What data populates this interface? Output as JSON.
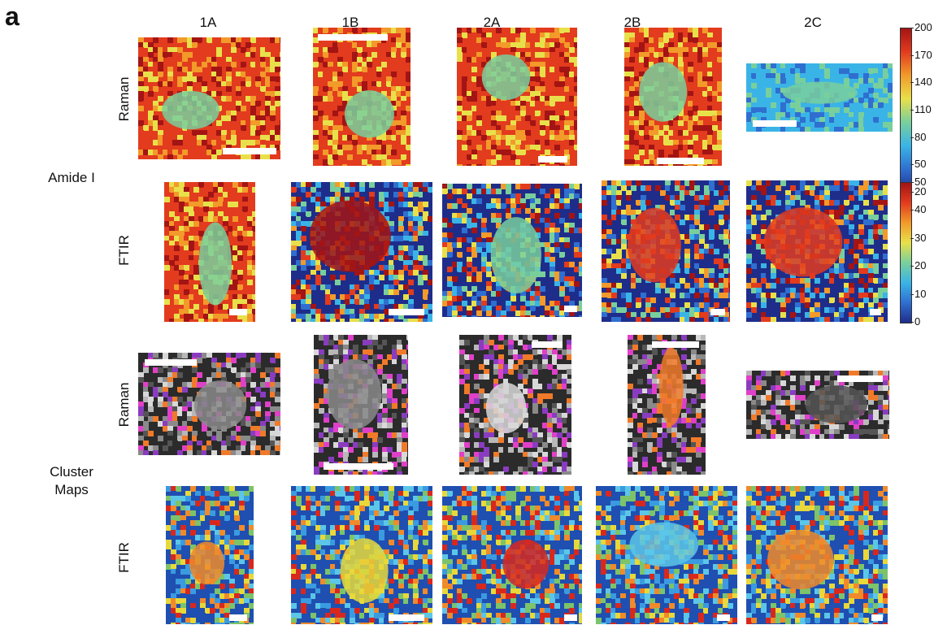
{
  "panel_label": "a",
  "columns": [
    "1A",
    "1B",
    "2A",
    "2B",
    "2C"
  ],
  "groups": {
    "amide": "Amide I",
    "cluster_line1": "Cluster",
    "cluster_line2": "Maps"
  },
  "row_labels": {
    "raman": "Raman",
    "ftir": "FTIR"
  },
  "colorbars": {
    "raman": {
      "ticks": [
        "200",
        "170",
        "140",
        "110",
        "80",
        "50",
        "20"
      ],
      "range": [
        20,
        200
      ]
    },
    "ftir": {
      "ticks": [
        "50",
        "40",
        "30",
        "20",
        "10",
        "0"
      ],
      "range": [
        0,
        50
      ]
    }
  },
  "colors": {
    "jet": [
      "#1f2d8a",
      "#2f6fd0",
      "#3ab4e6",
      "#79cf9c",
      "#e8e04a",
      "#f29a2a",
      "#e23b1e",
      "#a31414"
    ],
    "cluster_raman": [
      "#2b2b2b",
      "#555555",
      "#8a8a8a",
      "#b8b8b8",
      "#d8d8d8",
      "#e040c8",
      "#8a3cc0",
      "#f07a2a"
    ],
    "cluster_ftir": [
      "#1f4fb0",
      "#3a9be0",
      "#5cc6e8",
      "#f08a2a",
      "#e8d83a",
      "#7cc36a",
      "#d8281e"
    ]
  }
}
